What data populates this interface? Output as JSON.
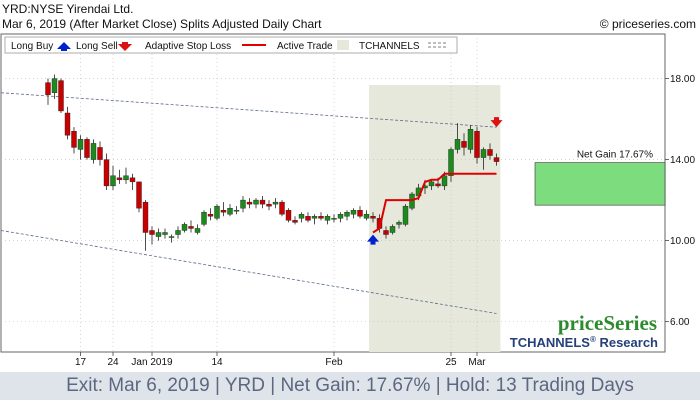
{
  "header": {
    "line1": "YRD:NYSE Yirendai Ltd.",
    "line2": "Mar 6, 2019 (After Market Close)  Splits Adjusted Daily Chart",
    "copyright": "© priceseries.com"
  },
  "legend": {
    "long_buy": "Long Buy",
    "long_sell": "Long Sell",
    "adaptive_stop": "Adaptive Stop Loss",
    "active_trade": "Active Trade",
    "tchannels": "TCHANNELS"
  },
  "branding": {
    "logo": "priceSeries",
    "tchannels_a": "TCHANNELS",
    "reg": "®",
    "tchannels_b": " Research"
  },
  "footer": {
    "text": "Exit: Mar 6, 2019 | YRD | Net Gain: 17.67% | Hold: 13 Trading Days"
  },
  "colors": {
    "up": "#1e8a1e",
    "down": "#c80000",
    "stop": "#e00000",
    "active_bg": "#e6e8dc",
    "gain_box": "#7ddc7d",
    "buy_arrow": "#0022cc",
    "sell_arrow": "#dd1111"
  },
  "chart_data": {
    "type": "candlestick",
    "ylim": [
      4.5,
      20.2
    ],
    "yticks": [
      6.0,
      10.0,
      14.0,
      18.0
    ],
    "ytick_labels": [
      "6.00",
      "10.00",
      "14.00",
      "18.00"
    ],
    "xticks": [
      {
        "index": 11,
        "label": "17"
      },
      {
        "index": 16,
        "label": "24"
      },
      {
        "index": 22,
        "label": "Jan 2019"
      },
      {
        "index": 32,
        "label": "14"
      },
      {
        "index": 50,
        "label": "Feb"
      },
      {
        "index": 68,
        "label": "25"
      },
      {
        "index": 72,
        "label": "Mar"
      }
    ],
    "bars": [
      {
        "o": 17.8,
        "h": 18.0,
        "l": 16.7,
        "c": 17.2
      },
      {
        "o": 17.3,
        "h": 18.2,
        "l": 17.0,
        "c": 18.0
      },
      {
        "o": 17.9,
        "h": 18.0,
        "l": 16.3,
        "c": 16.4
      },
      {
        "o": 16.3,
        "h": 16.6,
        "l": 15.0,
        "c": 15.2
      },
      {
        "o": 15.4,
        "h": 15.6,
        "l": 14.3,
        "c": 14.6
      },
      {
        "o": 14.5,
        "h": 15.2,
        "l": 14.0,
        "c": 15.0
      },
      {
        "o": 15.0,
        "h": 15.1,
        "l": 14.0,
        "c": 14.1
      },
      {
        "o": 14.0,
        "h": 15.0,
        "l": 13.8,
        "c": 14.8
      },
      {
        "o": 14.6,
        "h": 14.9,
        "l": 13.7,
        "c": 14.0
      },
      {
        "o": 14.0,
        "h": 14.3,
        "l": 12.5,
        "c": 12.7
      },
      {
        "o": 12.7,
        "h": 13.7,
        "l": 12.5,
        "c": 13.2
      },
      {
        "o": 13.1,
        "h": 13.5,
        "l": 12.8,
        "c": 13.0
      },
      {
        "o": 13.0,
        "h": 13.6,
        "l": 12.8,
        "c": 13.2
      },
      {
        "o": 13.1,
        "h": 13.3,
        "l": 12.5,
        "c": 12.9
      },
      {
        "o": 12.9,
        "h": 12.9,
        "l": 11.4,
        "c": 11.6
      },
      {
        "o": 11.9,
        "h": 12.0,
        "l": 9.5,
        "c": 10.4
      },
      {
        "o": 10.5,
        "h": 10.7,
        "l": 9.8,
        "c": 10.3
      },
      {
        "o": 10.2,
        "h": 10.6,
        "l": 10.0,
        "c": 10.4
      },
      {
        "o": 10.3,
        "h": 10.6,
        "l": 10.1,
        "c": 10.4
      },
      {
        "o": 10.2,
        "h": 10.3,
        "l": 9.9,
        "c": 10.2
      },
      {
        "o": 10.3,
        "h": 10.7,
        "l": 10.1,
        "c": 10.5
      },
      {
        "o": 10.5,
        "h": 10.9,
        "l": 10.4,
        "c": 10.8
      },
      {
        "o": 10.7,
        "h": 11.0,
        "l": 10.4,
        "c": 10.6
      },
      {
        "o": 10.4,
        "h": 10.8,
        "l": 10.3,
        "c": 10.6
      },
      {
        "o": 10.8,
        "h": 11.5,
        "l": 10.7,
        "c": 11.4
      },
      {
        "o": 11.3,
        "h": 11.6,
        "l": 11.0,
        "c": 11.2
      },
      {
        "o": 11.1,
        "h": 11.8,
        "l": 11.0,
        "c": 11.7
      },
      {
        "o": 11.5,
        "h": 11.9,
        "l": 11.2,
        "c": 11.4
      },
      {
        "o": 11.3,
        "h": 11.8,
        "l": 11.2,
        "c": 11.6
      },
      {
        "o": 11.5,
        "h": 11.7,
        "l": 11.3,
        "c": 11.5
      },
      {
        "o": 11.6,
        "h": 12.2,
        "l": 11.4,
        "c": 12.0
      },
      {
        "o": 11.9,
        "h": 12.1,
        "l": 11.6,
        "c": 11.8
      },
      {
        "o": 11.8,
        "h": 12.1,
        "l": 11.6,
        "c": 12.0
      },
      {
        "o": 12.0,
        "h": 12.2,
        "l": 11.6,
        "c": 11.8
      },
      {
        "o": 11.8,
        "h": 12.0,
        "l": 11.5,
        "c": 11.7
      },
      {
        "o": 11.8,
        "h": 12.1,
        "l": 11.6,
        "c": 11.9
      },
      {
        "o": 11.9,
        "h": 12.0,
        "l": 11.2,
        "c": 11.3
      },
      {
        "o": 11.5,
        "h": 11.6,
        "l": 10.9,
        "c": 11.0
      },
      {
        "o": 11.0,
        "h": 11.2,
        "l": 10.8,
        "c": 10.9
      },
      {
        "o": 11.1,
        "h": 11.4,
        "l": 10.9,
        "c": 11.3
      },
      {
        "o": 11.2,
        "h": 11.4,
        "l": 10.9,
        "c": 11.0
      },
      {
        "o": 11.1,
        "h": 11.3,
        "l": 10.8,
        "c": 11.2
      },
      {
        "o": 11.2,
        "h": 11.4,
        "l": 11.0,
        "c": 11.1
      },
      {
        "o": 11.0,
        "h": 11.3,
        "l": 10.8,
        "c": 11.2
      },
      {
        "o": 11.1,
        "h": 11.3,
        "l": 10.9,
        "c": 11.1
      },
      {
        "o": 11.1,
        "h": 11.4,
        "l": 10.9,
        "c": 11.3
      },
      {
        "o": 11.2,
        "h": 11.5,
        "l": 11.0,
        "c": 11.4
      },
      {
        "o": 11.3,
        "h": 11.6,
        "l": 11.1,
        "c": 11.5
      },
      {
        "o": 11.5,
        "h": 11.7,
        "l": 11.1,
        "c": 11.2
      },
      {
        "o": 11.1,
        "h": 11.5,
        "l": 11.0,
        "c": 11.3
      },
      {
        "o": 11.2,
        "h": 11.4,
        "l": 10.9,
        "c": 11.1
      },
      {
        "o": 11.1,
        "h": 11.3,
        "l": 10.4,
        "c": 10.6
      },
      {
        "o": 10.5,
        "h": 10.7,
        "l": 10.1,
        "c": 10.3
      },
      {
        "o": 10.4,
        "h": 10.8,
        "l": 10.3,
        "c": 10.7
      },
      {
        "o": 10.8,
        "h": 11.0,
        "l": 10.6,
        "c": 10.9
      },
      {
        "o": 10.8,
        "h": 11.8,
        "l": 10.7,
        "c": 11.7
      },
      {
        "o": 11.6,
        "h": 12.4,
        "l": 11.5,
        "c": 12.3
      },
      {
        "o": 12.2,
        "h": 12.8,
        "l": 12.0,
        "c": 12.6
      },
      {
        "o": 12.6,
        "h": 13.0,
        "l": 12.3,
        "c": 12.7
      },
      {
        "o": 12.7,
        "h": 13.0,
        "l": 12.5,
        "c": 12.9
      },
      {
        "o": 12.8,
        "h": 13.1,
        "l": 12.6,
        "c": 12.7
      },
      {
        "o": 12.7,
        "h": 13.4,
        "l": 12.5,
        "c": 13.2
      },
      {
        "o": 13.2,
        "h": 14.6,
        "l": 12.9,
        "c": 14.5
      },
      {
        "o": 14.5,
        "h": 15.8,
        "l": 14.3,
        "c": 15.0
      },
      {
        "o": 14.9,
        "h": 15.3,
        "l": 14.2,
        "c": 14.6
      },
      {
        "o": 14.5,
        "h": 15.7,
        "l": 14.3,
        "c": 15.5
      },
      {
        "o": 15.4,
        "h": 15.6,
        "l": 13.8,
        "c": 14.1
      },
      {
        "o": 14.1,
        "h": 14.6,
        "l": 13.5,
        "c": 14.5
      },
      {
        "o": 14.5,
        "h": 14.8,
        "l": 14.0,
        "c": 14.2
      },
      {
        "o": 14.1,
        "h": 14.3,
        "l": 13.7,
        "c": 13.9
      }
    ],
    "bar_x_start": 6,
    "adaptive_stop_loss": [
      {
        "index": 56,
        "value": 10.4
      },
      {
        "index": 57,
        "value": 10.6
      },
      {
        "index": 58,
        "value": 12.0
      },
      {
        "index": 59,
        "value": 12.0
      },
      {
        "index": 60,
        "value": 12.0
      },
      {
        "index": 61,
        "value": 12.0
      },
      {
        "index": 62,
        "value": 12.0
      },
      {
        "index": 63,
        "value": 12.1
      },
      {
        "index": 64,
        "value": 12.9
      },
      {
        "index": 65,
        "value": 13.0
      },
      {
        "index": 66,
        "value": 13.0
      },
      {
        "index": 67,
        "value": 13.3
      },
      {
        "index": 68,
        "value": 13.3
      },
      {
        "index": 69,
        "value": 13.3
      },
      {
        "index": 70,
        "value": 13.3
      },
      {
        "index": 71,
        "value": 13.3
      },
      {
        "index": 72,
        "value": 13.3
      },
      {
        "index": 73,
        "value": 13.3
      },
      {
        "index": 74,
        "value": 13.3
      },
      {
        "index": 75,
        "value": 13.3
      }
    ],
    "active_trade": {
      "start_index": 56,
      "end_index": 75
    },
    "long_buy": {
      "index": 56,
      "value": 10.0
    },
    "long_sell": {
      "index": 75,
      "value": 15.8
    },
    "channel_upper": [
      {
        "index": 0,
        "value": 17.3
      },
      {
        "index": 75,
        "value": 15.6
      }
    ],
    "channel_lower": [
      {
        "index": 0,
        "value": 10.5
      },
      {
        "index": 75,
        "value": 6.4
      }
    ],
    "net_gain": {
      "label": "Net Gain 17.67%",
      "low": 11.75,
      "high": 13.85
    }
  }
}
